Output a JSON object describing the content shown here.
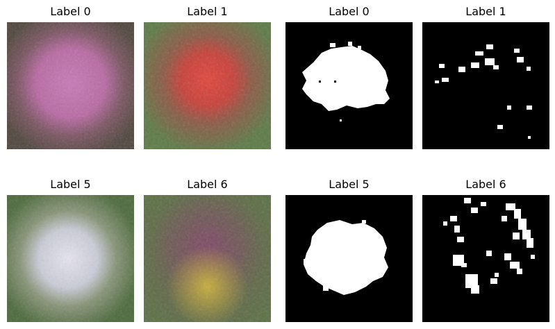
{
  "panels": [
    {
      "title": "Label 0"
    },
    {
      "title": "Label 1"
    },
    {
      "title": "Label 0"
    },
    {
      "title": "Label 1"
    },
    {
      "title": "Label 5"
    },
    {
      "title": "Label 6"
    },
    {
      "title": "Label 5"
    },
    {
      "title": "Label 6"
    }
  ],
  "colors": {
    "label0_center": "#c879b4",
    "label0_bg": "#5b4a42",
    "label1_center": "#d9433a",
    "label1_bg": "#5f7a48",
    "label5_center": "#d8d8e6",
    "label5_bg": "#4f6b3e",
    "label6_top": "#7d4f63",
    "label6_bottom": "#b7a33f",
    "label6_bg": "#5a7244",
    "mask_bg": "#000000",
    "mask_fg": "#ffffff"
  }
}
